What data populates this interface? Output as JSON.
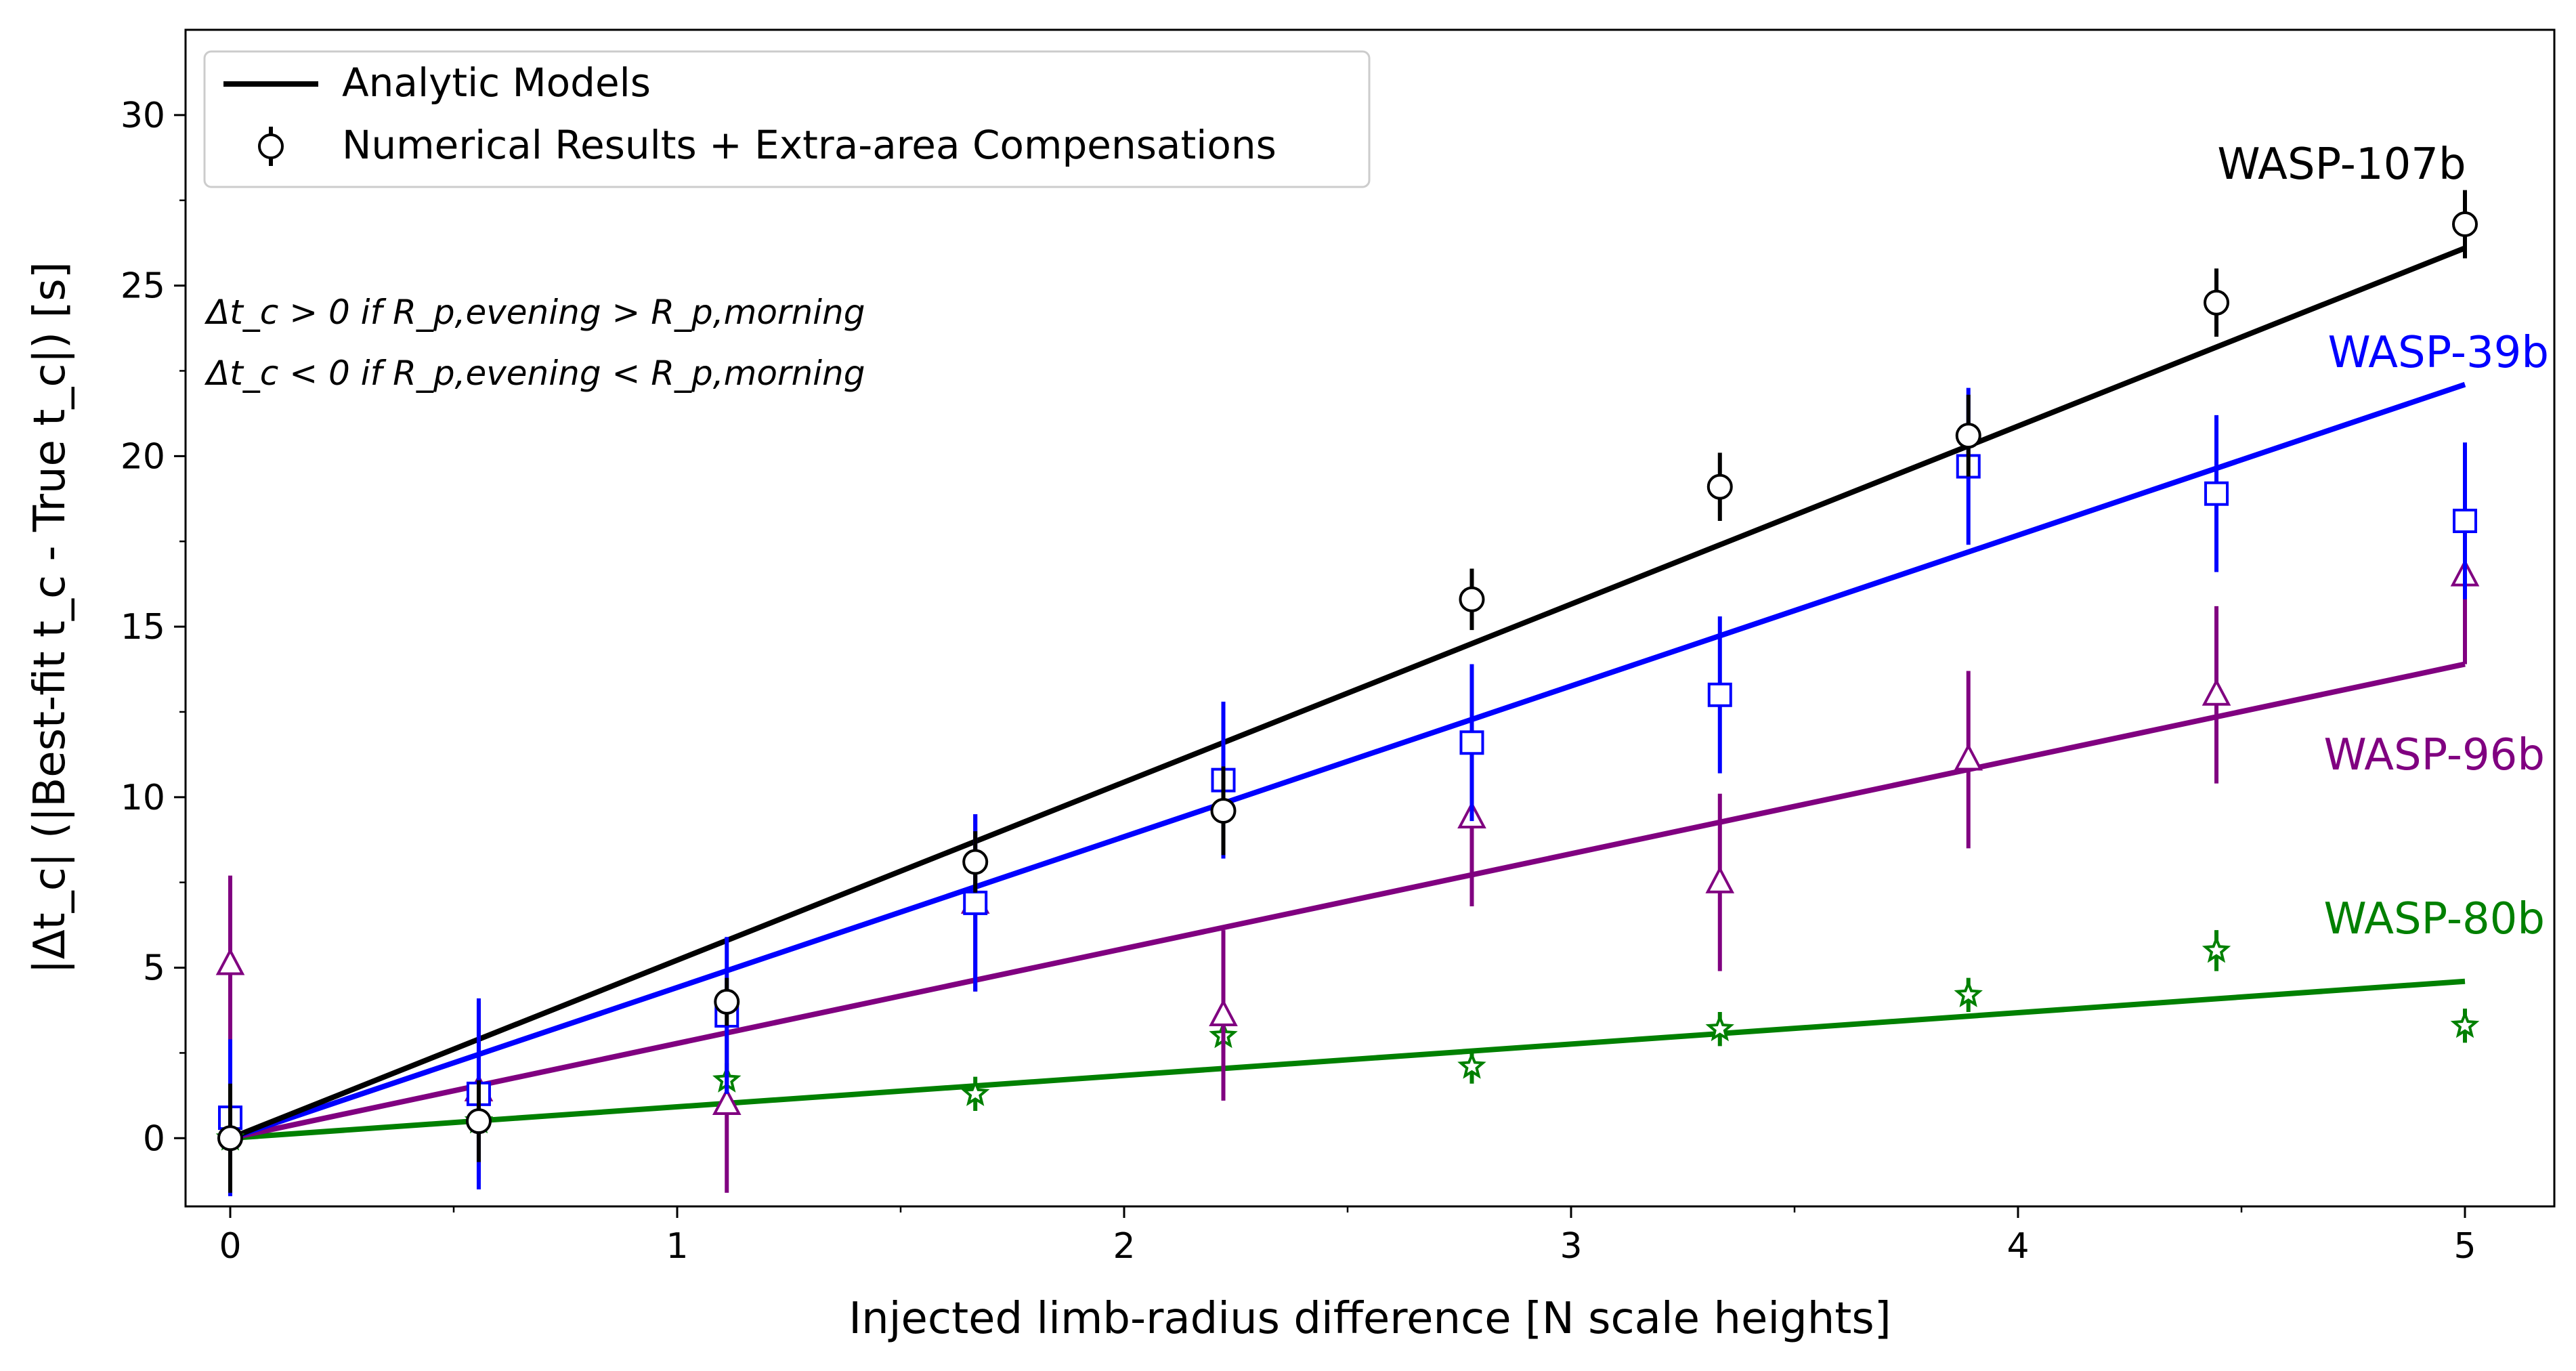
{
  "chart_data": {
    "type": "scatter",
    "xlabel": "Injected limb-radius difference [N scale heights]",
    "ylabel": "|Δt_c| (|Best-fit t_c - True t_c|) [s]",
    "xlim": [
      -0.1,
      5.2
    ],
    "ylim": [
      -2,
      32.5
    ],
    "x_ticks": [
      0,
      1,
      2,
      3,
      4,
      5
    ],
    "y_ticks": [
      0,
      5,
      10,
      15,
      20,
      25,
      30
    ],
    "grid": false,
    "legend_position": "top-left",
    "legend": [
      {
        "label": "Analytic Models",
        "marker": "line"
      },
      {
        "label": "Numerical Results + Extra-area Compensations",
        "marker": "open-circle-errorbar"
      }
    ],
    "annotations": [
      {
        "text": "Δt_c > 0 if R_p,evening > R_p,morning"
      },
      {
        "text": "Δt_c < 0 if R_p,evening < R_p,morning"
      }
    ],
    "series": [
      {
        "name": "WASP-107b",
        "color": "#000000",
        "marker": "circle",
        "model_slope": 5.22,
        "x": [
          0,
          0.556,
          1.111,
          1.667,
          2.222,
          2.778,
          3.333,
          3.889,
          4.444,
          5.0
        ],
        "y": [
          0.0,
          0.5,
          4.0,
          8.1,
          9.6,
          15.8,
          19.1,
          20.6,
          24.5,
          26.8
        ],
        "err": [
          1.6,
          1.2,
          0.7,
          0.9,
          1.3,
          0.9,
          1.0,
          1.2,
          1.0,
          1.0
        ]
      },
      {
        "name": "WASP-39b",
        "color": "#0000ff",
        "marker": "square",
        "model_slope": 4.42,
        "x": [
          0,
          0.556,
          1.111,
          1.667,
          2.222,
          2.778,
          3.333,
          3.889,
          4.444,
          5.0
        ],
        "y": [
          0.6,
          1.3,
          3.6,
          6.9,
          10.5,
          11.6,
          13.0,
          19.7,
          18.9,
          18.1
        ],
        "err": [
          2.3,
          2.8,
          2.3,
          2.6,
          2.3,
          2.3,
          2.3,
          2.3,
          2.3,
          2.3
        ]
      },
      {
        "name": "WASP-96b",
        "color": "#800080",
        "marker": "triangle",
        "model_slope": 2.78,
        "x": [
          0,
          0.556,
          1.111,
          1.667,
          2.222,
          2.778,
          3.333,
          3.889,
          4.444,
          5.0
        ],
        "y": [
          5.1,
          1.4,
          1.0,
          6.9,
          3.6,
          9.4,
          7.5,
          11.1,
          13.0,
          16.5
        ],
        "err": [
          2.6,
          2.6,
          2.6,
          2.6,
          2.5,
          2.6,
          2.6,
          2.6,
          2.6,
          2.6
        ]
      },
      {
        "name": "WASP-80b",
        "color": "#008000",
        "marker": "star",
        "model_slope": 0.92,
        "x": [
          0,
          0.556,
          1.111,
          1.667,
          2.222,
          2.778,
          3.333,
          3.889,
          4.444,
          5.0
        ],
        "y": [
          0.0,
          0.5,
          1.7,
          1.3,
          3.0,
          2.1,
          3.2,
          4.2,
          5.5,
          3.3
        ],
        "err": [
          0.5,
          0.5,
          0.5,
          0.5,
          0.5,
          0.5,
          0.5,
          0.5,
          0.6,
          0.5
        ]
      }
    ]
  }
}
